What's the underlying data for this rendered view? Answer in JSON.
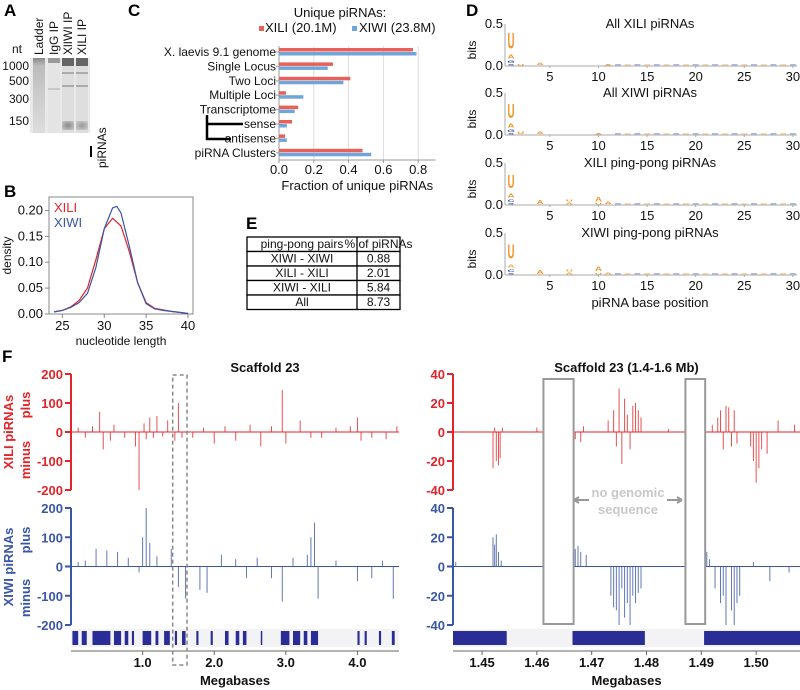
{
  "colors": {
    "xili": "#e0262a",
    "xiwi": "#3a56a6",
    "bar_xili": "#e8605a",
    "bar_xiwi": "#6fa5d8",
    "logo_purine": "#f0962a",
    "logo_pyrimidine": "#3b4fb0",
    "gene": "#2a2d96",
    "gap_box": "#999999"
  },
  "panels": {
    "A": {
      "letter": "A",
      "unit": "nt",
      "markers": [
        "1000",
        "500",
        "300",
        "150"
      ],
      "lanes": [
        "Ladder",
        "IgG IP",
        "XlIWI IP",
        "XILI IP"
      ],
      "band_label": "piRNAs"
    },
    "B": {
      "letter": "B"
    },
    "C": {
      "letter": "C",
      "legend_title": "Unique piRNAs:"
    },
    "D": {
      "letter": "D"
    },
    "E": {
      "letter": "E"
    },
    "F": {
      "letter": "F",
      "row_labels": {
        "xili": "XILI piRNAs",
        "xiwi": "XIWI piRNAs",
        "plus": "plus",
        "minus": "minus"
      },
      "gap_note_1": "no genomic",
      "gap_note_2": "sequence"
    }
  },
  "chart_data": [
    {
      "id": "B",
      "type": "line",
      "xlabel": "nucleotide length",
      "ylabel": "density",
      "xlim": [
        23.4,
        40.6
      ],
      "ylim": [
        0,
        0.226
      ],
      "xticks": [
        "25",
        "30",
        "35",
        "40"
      ],
      "yticks": [
        "0.00",
        "0.05",
        "0.10",
        "0.15",
        "0.20"
      ],
      "legend": "top-left",
      "series": [
        {
          "name": "XILI",
          "x": [
            24,
            25,
            26,
            27,
            28,
            29,
            30,
            31,
            32,
            33,
            34,
            35,
            36,
            37,
            38,
            39,
            40
          ],
          "y": [
            0.004,
            0.007,
            0.014,
            0.026,
            0.05,
            0.105,
            0.165,
            0.185,
            0.17,
            0.12,
            0.06,
            0.022,
            0.011,
            0.008,
            0.005,
            0.003,
            0.001
          ]
        },
        {
          "name": "XIWI",
          "x": [
            24,
            25,
            26,
            27,
            28,
            29,
            30,
            31,
            31.5,
            32,
            33,
            34,
            35,
            36,
            37,
            38,
            39,
            40
          ],
          "y": [
            0.004,
            0.007,
            0.013,
            0.022,
            0.04,
            0.09,
            0.165,
            0.205,
            0.208,
            0.195,
            0.13,
            0.06,
            0.02,
            0.01,
            0.007,
            0.005,
            0.003,
            0.001
          ]
        }
      ]
    },
    {
      "id": "C",
      "type": "bar",
      "orientation": "horizontal",
      "xlabel": "Fraction of unique piRNAs",
      "xlim": [
        0,
        0.9
      ],
      "xticks": [
        "0.0",
        "0.2",
        "0.4",
        "0.6",
        "0.8"
      ],
      "grid": true,
      "legend": "top",
      "categories": [
        "X. laevis 9.1 genome",
        "Single Locus",
        "Two Loci",
        "Multiple Loci",
        "Transcriptome",
        "sense",
        "antisense",
        "piRNA Clusters"
      ],
      "series": [
        {
          "name": "XILI (20.1M)",
          "values": [
            0.77,
            0.31,
            0.41,
            0.04,
            0.11,
            0.075,
            0.035,
            0.48
          ]
        },
        {
          "name": "XIWI (23.8M)",
          "values": [
            0.79,
            0.28,
            0.37,
            0.14,
            0.09,
            0.045,
            0.045,
            0.53
          ]
        }
      ]
    },
    {
      "id": "D",
      "type": "sequence-logo",
      "xlabel": "piRNA base position",
      "ylabel": "bits",
      "ylim": [
        0,
        0.5
      ],
      "xticks": [
        "5",
        "10",
        "15",
        "20",
        "25",
        "30"
      ],
      "yticks": [
        "0.0",
        "0.5"
      ],
      "positions": 30,
      "logos": [
        {
          "title": "All XILI piRNAs",
          "columns": [
            {
              "pos": 1,
              "letters": [
                {
                  "base": "S",
                  "bits": 0.03
                },
                {
                  "base": "G",
                  "bits": 0.05
                },
                {
                  "base": "A",
                  "bits": 0.08
                },
                {
                  "base": "U",
                  "bits": 0.33
                }
              ]
            },
            {
              "pos": 2,
              "letters": [
                {
                  "base": "U",
                  "bits": 0.03
                }
              ]
            },
            {
              "pos": 4,
              "letters": [
                {
                  "base": "A",
                  "bits": 0.06
                }
              ]
            },
            {
              "pos": 11,
              "letters": [
                {
                  "base": "A",
                  "bits": 0.03
                }
              ]
            }
          ]
        },
        {
          "title": "All XIWI piRNAs",
          "columns": [
            {
              "pos": 1,
              "letters": [
                {
                  "base": "S",
                  "bits": 0.03
                },
                {
                  "base": "G",
                  "bits": 0.05
                },
                {
                  "base": "A",
                  "bits": 0.08
                },
                {
                  "base": "U",
                  "bits": 0.3
                }
              ]
            },
            {
              "pos": 2,
              "letters": [
                {
                  "base": "U",
                  "bits": 0.05
                }
              ]
            },
            {
              "pos": 4,
              "letters": [
                {
                  "base": "A",
                  "bits": 0.06
                }
              ]
            },
            {
              "pos": 10,
              "letters": [
                {
                  "base": "A",
                  "bits": 0.02
                }
              ]
            }
          ]
        },
        {
          "title": "XILI ping-pong piRNAs",
          "columns": [
            {
              "pos": 1,
              "letters": [
                {
                  "base": "S",
                  "bits": 0.03
                },
                {
                  "base": "C",
                  "bits": 0.05
                },
                {
                  "base": "A",
                  "bits": 0.08
                },
                {
                  "base": "U",
                  "bits": 0.28
                }
              ]
            },
            {
              "pos": 4,
              "letters": [
                {
                  "base": "A",
                  "bits": 0.08
                }
              ]
            },
            {
              "pos": 7,
              "letters": [
                {
                  "base": "A",
                  "bits": 0.04
                },
                {
                  "base": "U",
                  "bits": 0.04
                }
              ]
            },
            {
              "pos": 10,
              "letters": [
                {
                  "base": "U",
                  "bits": 0.03
                },
                {
                  "base": "A",
                  "bits": 0.09
                }
              ]
            },
            {
              "pos": 11,
              "letters": [
                {
                  "base": "A",
                  "bits": 0.05
                }
              ]
            }
          ]
        },
        {
          "title": "XIWI ping-pong piRNAs",
          "columns": [
            {
              "pos": 1,
              "letters": [
                {
                  "base": "S",
                  "bits": 0.03
                },
                {
                  "base": "C",
                  "bits": 0.05
                },
                {
                  "base": "A",
                  "bits": 0.07
                },
                {
                  "base": "U",
                  "bits": 0.3
                }
              ]
            },
            {
              "pos": 4,
              "letters": [
                {
                  "base": "A",
                  "bits": 0.08
                }
              ]
            },
            {
              "pos": 7,
              "letters": [
                {
                  "base": "A",
                  "bits": 0.04
                },
                {
                  "base": "U",
                  "bits": 0.04
                }
              ]
            },
            {
              "pos": 10,
              "letters": [
                {
                  "base": "U",
                  "bits": 0.03
                },
                {
                  "base": "A",
                  "bits": 0.1
                }
              ]
            },
            {
              "pos": 11,
              "letters": [
                {
                  "base": "A",
                  "bits": 0.04
                }
              ]
            }
          ]
        }
      ]
    },
    {
      "id": "E",
      "type": "table",
      "columns": [
        "ping-pong pairs",
        "% of piRNAs"
      ],
      "rows": [
        [
          "XIWI - XIWI",
          "0.88"
        ],
        [
          "XILI - XILI",
          "2.01"
        ],
        [
          "XIWI - XILI",
          "5.84"
        ],
        [
          "All",
          "8.73"
        ]
      ]
    },
    {
      "id": "F-left",
      "type": "bar",
      "title": "Scaffold 23",
      "xlabel": "Megabases",
      "xlim": [
        0,
        4.58
      ],
      "xticks": [
        "1.0",
        "2.0",
        "3.0",
        "4.0"
      ],
      "ylim": [
        -200,
        200
      ],
      "yticks": [
        "200",
        "100",
        "0",
        "-100",
        "-200"
      ],
      "highlight_region": [
        1.42,
        1.62
      ],
      "series": [
        {
          "name": "XILI piRNAs",
          "x": [
            0.1,
            0.2,
            0.3,
            0.4,
            0.45,
            0.55,
            0.6,
            0.75,
            0.9,
            0.95,
            1.02,
            1.05,
            1.1,
            1.15,
            1.2,
            1.28,
            1.35,
            1.45,
            1.5,
            1.55,
            1.7,
            1.85,
            2.0,
            2.15,
            2.3,
            2.5,
            2.65,
            2.8,
            2.95,
            3.0,
            3.2,
            3.35,
            3.5,
            3.7,
            3.9,
            4.0,
            4.05,
            4.2,
            4.4,
            4.55
          ],
          "y": [
            15,
            -20,
            20,
            70,
            -60,
            -30,
            25,
            -20,
            -50,
            -200,
            30,
            -25,
            50,
            -20,
            55,
            -15,
            40,
            -30,
            100,
            -20,
            -20,
            15,
            -40,
            20,
            -30,
            25,
            -50,
            20,
            145,
            -40,
            40,
            -20,
            -20,
            15,
            20,
            50,
            -30,
            -20,
            -25,
            20
          ]
        },
        {
          "name": "XIWI piRNAs",
          "x": [
            0.1,
            0.2,
            0.35,
            0.5,
            0.65,
            0.8,
            0.95,
            1.0,
            1.05,
            1.1,
            1.2,
            1.4,
            1.5,
            1.6,
            1.8,
            1.9,
            2.1,
            2.3,
            2.45,
            2.6,
            2.8,
            2.95,
            3.1,
            3.3,
            3.35,
            3.4,
            3.45,
            3.7,
            4.0,
            4.2,
            4.35,
            4.5
          ],
          "y": [
            15,
            20,
            60,
            55,
            50,
            30,
            -20,
            100,
            200,
            80,
            35,
            60,
            -70,
            -110,
            -80,
            -90,
            40,
            25,
            -40,
            30,
            -40,
            -120,
            30,
            40,
            100,
            150,
            -110,
            20,
            -50,
            -40,
            20,
            -110
          ]
        }
      ],
      "gene_track": [
        [
          0.02,
          0.1
        ],
        [
          0.15,
          0.22
        ],
        [
          0.3,
          0.55
        ],
        [
          0.6,
          0.7
        ],
        [
          0.75,
          0.8
        ],
        [
          0.85,
          0.88
        ],
        [
          1.0,
          1.12
        ],
        [
          1.18,
          1.22
        ],
        [
          1.3,
          1.38
        ],
        [
          1.45,
          1.48
        ],
        [
          1.55,
          1.6
        ],
        [
          1.75,
          1.78
        ],
        [
          1.95,
          1.98
        ],
        [
          2.15,
          2.2
        ],
        [
          2.3,
          2.35
        ],
        [
          2.4,
          2.45
        ],
        [
          2.65,
          2.67
        ],
        [
          2.93,
          3.05
        ],
        [
          3.1,
          3.2
        ],
        [
          3.25,
          3.3
        ],
        [
          3.35,
          3.45
        ],
        [
          4.0,
          4.03
        ],
        [
          4.1,
          4.13
        ],
        [
          4.3,
          4.33
        ],
        [
          4.48,
          4.52
        ]
      ]
    },
    {
      "id": "F-right",
      "type": "bar",
      "title": "Scaffold 23 (1.4-1.6 Mb)",
      "xlabel": "Megabases",
      "xlim": [
        1.4447,
        1.508
      ],
      "xticks": [
        "1.45",
        "1.46",
        "1.47",
        "1.48",
        "1.49",
        "1.50"
      ],
      "ylim": [
        -40,
        40
      ],
      "yticks": [
        "40",
        "20",
        "0",
        "-20",
        "-40"
      ],
      "gaps": [
        [
          1.4612,
          1.4667
        ],
        [
          1.4871,
          1.4907
        ]
      ],
      "series": [
        {
          "name": "XILI piRNAs",
          "x": [
            1.452,
            1.4523,
            1.4526,
            1.453,
            1.4533,
            1.4537,
            1.46,
            1.467,
            1.468,
            1.4685,
            1.473,
            1.474,
            1.4745,
            1.475,
            1.4755,
            1.476,
            1.4765,
            1.477,
            1.4775,
            1.478,
            1.4785,
            1.479,
            1.484,
            1.492,
            1.493,
            1.4935,
            1.494,
            1.4945,
            1.495,
            1.4955,
            1.496,
            1.4965,
            1.499,
            1.4995,
            1.5,
            1.5005,
            1.501,
            1.502,
            1.504,
            1.507
          ],
          "y": [
            -25,
            3,
            -20,
            -23,
            -18,
            3,
            3,
            -5,
            -7,
            4,
            8,
            15,
            -10,
            30,
            -22,
            23,
            12,
            -12,
            18,
            20,
            15,
            10,
            2,
            5,
            10,
            15,
            -12,
            18,
            17,
            -10,
            15,
            -8,
            -10,
            -20,
            -35,
            -25,
            -12,
            -15,
            8,
            5
          ]
        },
        {
          "name": "XIWI piRNAs",
          "x": [
            1.4452,
            1.452,
            1.4523,
            1.4526,
            1.453,
            1.4535,
            1.467,
            1.4675,
            1.468,
            1.469,
            1.4735,
            1.474,
            1.4745,
            1.475,
            1.4755,
            1.476,
            1.4765,
            1.477,
            1.4775,
            1.478,
            1.4785,
            1.479,
            1.4905,
            1.491,
            1.4915,
            1.4925,
            1.4935,
            1.494,
            1.4945,
            1.4955,
            1.496,
            1.4965,
            1.497,
            1.4995,
            1.5025,
            1.506
          ],
          "y": [
            3,
            20,
            15,
            22,
            10,
            4,
            12,
            14,
            10,
            8,
            -20,
            -28,
            -30,
            -40,
            -15,
            -35,
            -25,
            -40,
            -20,
            -25,
            -18,
            -15,
            25,
            10,
            5,
            -15,
            -25,
            -20,
            -40,
            -30,
            -40,
            -25,
            -20,
            3,
            -10,
            -4
          ]
        }
      ],
      "gene_track": [
        [
          1.4447,
          1.4545
        ],
        [
          1.4665,
          1.4797
        ],
        [
          1.4905,
          1.508
        ]
      ]
    }
  ]
}
